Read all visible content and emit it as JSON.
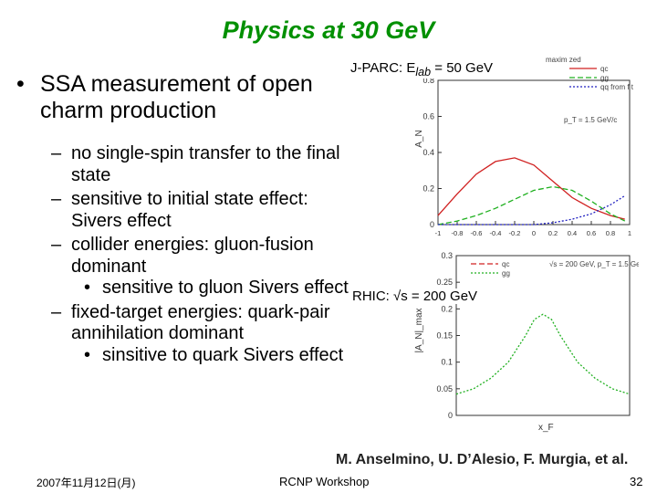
{
  "slide": {
    "title": "Physics at 30 GeV",
    "bullets": [
      {
        "level": 1,
        "text": "SSA measurement of open charm production"
      },
      {
        "level": 2,
        "text": "no single-spin transfer to the final state"
      },
      {
        "level": 2,
        "text": "sensitive to initial state effect: Sivers effect"
      },
      {
        "level": 2,
        "text": "collider energies: gluon-fusion dominant"
      },
      {
        "level": 3,
        "text": "sensitive to gluon Sivers effect"
      },
      {
        "level": 2,
        "text": "fixed-target energies: quark-pair annihilation dominant"
      },
      {
        "level": 3,
        "text": "sinsitive to quark Sivers effect"
      }
    ],
    "citation": "M. Anselmino, U. D’Alesio, F. Murgia, et al.",
    "footer": {
      "date": "2007年11月12日(月)",
      "center": "RCNP Workshop",
      "page": "32"
    },
    "plot_labels": {
      "top": "J-PARC: E",
      "top_sub": "lab",
      "top_tail": " = 50 GeV",
      "bottom": "RHIC: √s = 200 GeV"
    },
    "colors": {
      "title": "#009000",
      "qc": "#d02020",
      "gg": "#20b020",
      "qq": "#2020c0"
    }
  },
  "chart_data": [
    {
      "type": "line",
      "ylabel": "A_N",
      "xlim": [
        -1,
        1
      ],
      "ylim": [
        0,
        0.8
      ],
      "xticks": [
        "-1",
        "-0.8",
        "-0.6",
        "-0.4",
        "-0.2",
        "0",
        "0.2",
        "0.4",
        "0.6",
        "0.8",
        "1"
      ],
      "yticks": [
        "0",
        "0.2",
        "0.4",
        "0.6",
        "0.8"
      ],
      "legend": [
        "maxim zed",
        "qc",
        "gg",
        "qq from f t"
      ],
      "annotation": "p_T = 1.5 GeV/c",
      "series": [
        {
          "name": "qc",
          "style": "solid",
          "x": [
            -1,
            -0.8,
            -0.6,
            -0.4,
            -0.2,
            0,
            0.2,
            0.4,
            0.6,
            0.8,
            0.95
          ],
          "y": [
            0.05,
            0.17,
            0.28,
            0.35,
            0.37,
            0.33,
            0.24,
            0.15,
            0.09,
            0.05,
            0.03
          ]
        },
        {
          "name": "gg",
          "style": "dashed",
          "x": [
            -1,
            -0.8,
            -0.6,
            -0.4,
            -0.2,
            0,
            0.2,
            0.4,
            0.6,
            0.8,
            0.95
          ],
          "y": [
            0,
            0.02,
            0.05,
            0.09,
            0.14,
            0.19,
            0.21,
            0.19,
            0.13,
            0.06,
            0.02
          ]
        },
        {
          "name": "qq from f t",
          "style": "dotted",
          "x": [
            -1,
            -0.6,
            -0.2,
            0,
            0.2,
            0.4,
            0.6,
            0.8,
            0.95
          ],
          "y": [
            0,
            0,
            0,
            0,
            0.01,
            0.03,
            0.06,
            0.11,
            0.16
          ]
        }
      ]
    },
    {
      "type": "line",
      "xlabel": "x_F",
      "ylabel": "|A_N|_max",
      "xlim": [
        -1,
        1
      ],
      "ylim": [
        0,
        0.3
      ],
      "yticks": [
        "0",
        "0.05",
        "0.1",
        "0.15",
        "0.2",
        "0.25",
        "0.3"
      ],
      "legend": [
        "qc",
        "gg"
      ],
      "annotation": "√s = 200 GeV, p_T = 1.5 GeV/c",
      "series": [
        {
          "name": "gg",
          "style": "dotted",
          "x": [
            -1,
            -0.8,
            -0.6,
            -0.4,
            -0.2,
            -0.1,
            0,
            0.1,
            0.2,
            0.4,
            0.6,
            0.8,
            1
          ],
          "y": [
            0.04,
            0.05,
            0.07,
            0.1,
            0.15,
            0.18,
            0.19,
            0.18,
            0.15,
            0.1,
            0.07,
            0.05,
            0.04
          ]
        }
      ]
    }
  ]
}
